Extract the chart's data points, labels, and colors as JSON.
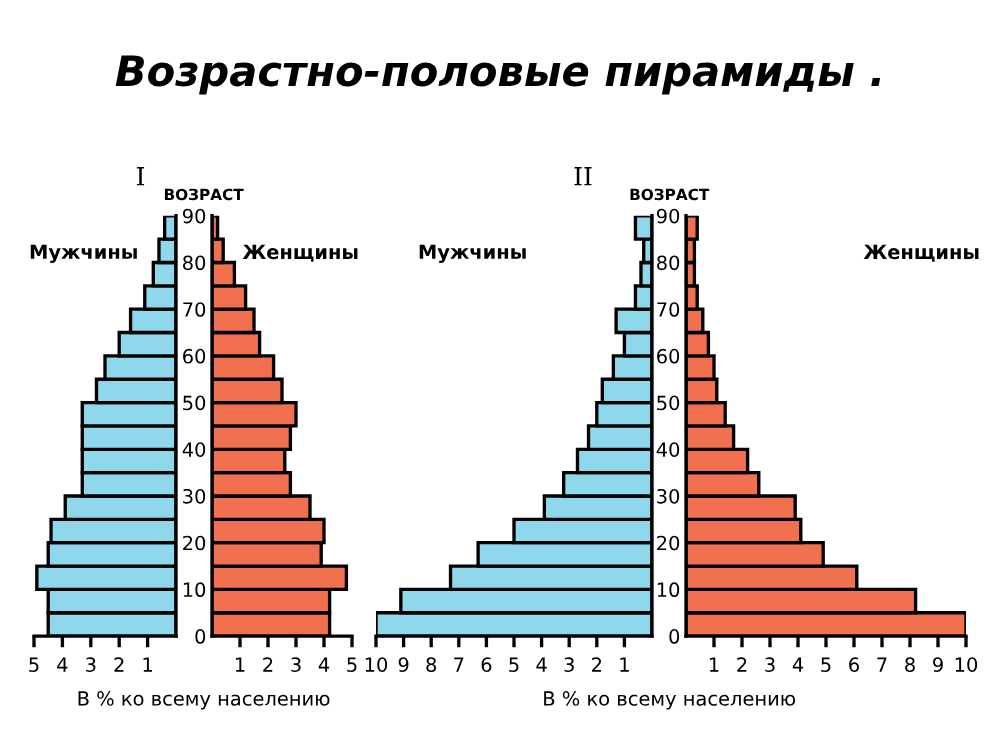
{
  "chart_data": [
    {
      "type": "bar",
      "orientation": "horizontal",
      "title": "Возрастно-половые пирамиды .",
      "subtitle": "Мужчины",
      "annotations": [
        "I"
      ],
      "x": [
        2.5,
        7.5,
        12.5,
        17.5,
        22.5,
        27.5,
        32.5,
        37.5,
        42.5,
        47.5,
        52.5,
        57.5,
        62.5,
        67.5,
        72.5,
        77.5,
        82.5,
        87.5
      ],
      "values": [
        4.5,
        4.5,
        4.9,
        4.5,
        4.4,
        3.9,
        3.3,
        3.3,
        3.3,
        3.3,
        2.8,
        2.5,
        2.0,
        1.6,
        1.1,
        0.8,
        0.6,
        0.4
      ],
      "color": "#8fd8ec",
      "xlim": [
        5,
        0
      ],
      "xticks": [
        1,
        2,
        3,
        4,
        5
      ],
      "ylim": [
        0,
        90
      ],
      "yticks": [
        0,
        10,
        20,
        30,
        40,
        50,
        60,
        70,
        80,
        90
      ],
      "tick_labels": "x",
      "grid": false
    },
    {
      "type": "bar",
      "orientation": "horizontal",
      "subtitle": "Женщины",
      "ylabel": "ВОЗРАСТ",
      "xlabel": "В % ко всему населению",
      "x": [
        2.5,
        7.5,
        12.5,
        17.5,
        22.5,
        27.5,
        32.5,
        37.5,
        42.5,
        47.5,
        52.5,
        57.5,
        62.5,
        67.5,
        72.5,
        77.5,
        82.5,
        87.5
      ],
      "values": [
        4.2,
        4.2,
        4.8,
        3.9,
        4.0,
        3.5,
        2.8,
        2.6,
        2.8,
        3.0,
        2.5,
        2.2,
        1.7,
        1.5,
        1.2,
        0.8,
        0.4,
        0.2
      ],
      "color": "#f07050",
      "xlim": [
        0,
        5
      ],
      "xticks": [
        1,
        2,
        3,
        4,
        5
      ],
      "ylim": [
        0,
        90
      ],
      "yticks": [
        0,
        10,
        20,
        30,
        40,
        50,
        60,
        70,
        80,
        90
      ],
      "grid": false
    },
    {
      "type": "bar",
      "orientation": "horizontal",
      "subtitle": "Мужчины",
      "annotations": [
        "II"
      ],
      "x": [
        2.5,
        7.5,
        12.5,
        17.5,
        22.5,
        27.5,
        32.5,
        37.5,
        42.5,
        47.5,
        52.5,
        57.5,
        62.5,
        67.5,
        72.5,
        77.5,
        82.5,
        87.5
      ],
      "values": [
        10.0,
        9.1,
        7.3,
        6.3,
        5.0,
        3.9,
        3.2,
        2.7,
        2.3,
        2.0,
        1.8,
        1.4,
        1.0,
        1.3,
        0.6,
        0.4,
        0.3,
        0.6
      ],
      "color": "#8fd8ec",
      "xlim": [
        10,
        0
      ],
      "xticks": [
        1,
        2,
        3,
        4,
        5,
        6,
        7,
        8,
        9,
        10
      ],
      "ylim": [
        0,
        90
      ],
      "yticks": [
        0,
        10,
        20,
        30,
        40,
        50,
        60,
        70,
        80,
        90
      ],
      "tick_labels": "x",
      "grid": false
    },
    {
      "type": "bar",
      "orientation": "horizontal",
      "subtitle": "Женщины",
      "ylabel": "ВОЗРАСТ",
      "xlabel": "В % ко всему населению",
      "x": [
        2.5,
        7.5,
        12.5,
        17.5,
        22.5,
        27.5,
        32.5,
        37.5,
        42.5,
        47.5,
        52.5,
        57.5,
        62.5,
        67.5,
        72.5,
        77.5,
        82.5,
        87.5
      ],
      "values": [
        10.0,
        8.2,
        6.1,
        4.9,
        4.1,
        3.9,
        2.6,
        2.2,
        1.7,
        1.4,
        1.1,
        1.0,
        0.8,
        0.6,
        0.4,
        0.3,
        0.3,
        0.4
      ],
      "color": "#f07050",
      "xlim": [
        0,
        10
      ],
      "xticks": [
        1,
        2,
        3,
        4,
        5,
        6,
        7,
        8,
        9,
        10
      ],
      "ylim": [
        0,
        90
      ],
      "yticks": [
        0,
        10,
        20,
        30,
        40,
        50,
        60,
        70,
        80,
        90
      ],
      "grid": false
    }
  ]
}
